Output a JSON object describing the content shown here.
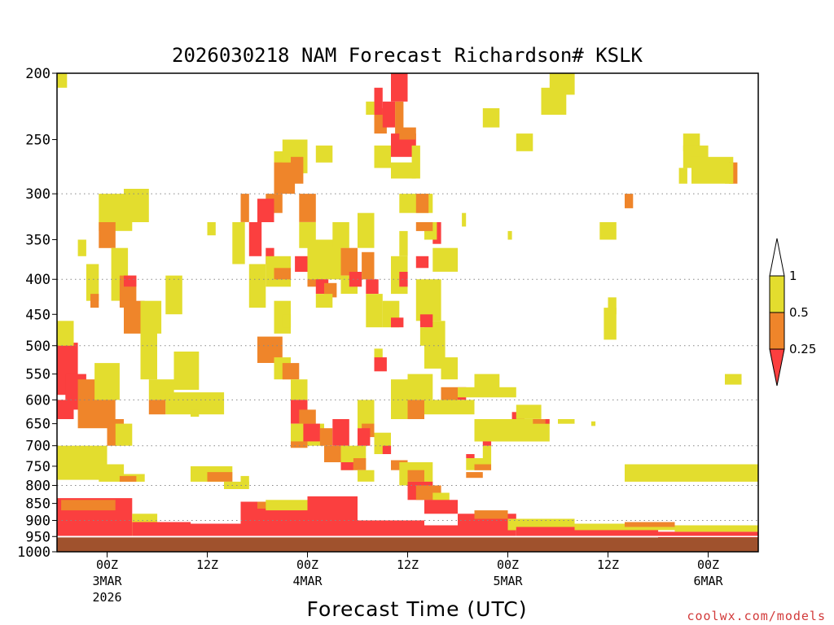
{
  "chart_data": {
    "type": "heatmap",
    "title": "2026030218 NAM Forecast Richardson# KSLK",
    "xlabel": "Forecast Time (UTC)",
    "credit": "coolwx.com/models",
    "y_axis": {
      "label": "",
      "scale": "log-pressure",
      "range_hpa": [
        1000,
        200
      ],
      "ticks": [
        "200",
        "250",
        "300",
        "350",
        "400",
        "450",
        "500",
        "550",
        "600",
        "650",
        "700",
        "750",
        "800",
        "850",
        "900",
        "950",
        "1000"
      ],
      "dotted_gridlines_at": [
        300,
        400,
        500,
        600,
        700,
        800,
        900,
        1000
      ]
    },
    "x_axis": {
      "range_hours_utc": [
        "2026-03-02 18Z",
        "2026-03-06 06Z"
      ],
      "ticks": [
        {
          "main": "00Z",
          "sub": "3MAR",
          "sub2": "2026"
        },
        {
          "main": "12Z",
          "sub": "",
          "sub2": ""
        },
        {
          "main": "00Z",
          "sub": "4MAR",
          "sub2": ""
        },
        {
          "main": "12Z",
          "sub": "",
          "sub2": ""
        },
        {
          "main": "00Z",
          "sub": "5MAR",
          "sub2": ""
        },
        {
          "main": "12Z",
          "sub": "",
          "sub2": ""
        },
        {
          "main": "00Z",
          "sub": "6MAR",
          "sub2": ""
        }
      ]
    },
    "legend": {
      "placement": "right",
      "levels": [
        {
          "range": "0.5 - 1",
          "color": "#e3dd2e"
        },
        {
          "range": "0.25 - 0.5",
          "color": "#ef852a"
        },
        {
          "range": "< 0.25",
          "color": "#fb3f3f"
        }
      ],
      "labels": [
        "1",
        "0.5",
        "0.25"
      ]
    },
    "terrain_color": "#a0522d",
    "colors": {
      "yellow": "#e3dd2e",
      "orange": "#ef852a",
      "red": "#fb3f3f",
      "terrain": "#a0522d"
    }
  }
}
